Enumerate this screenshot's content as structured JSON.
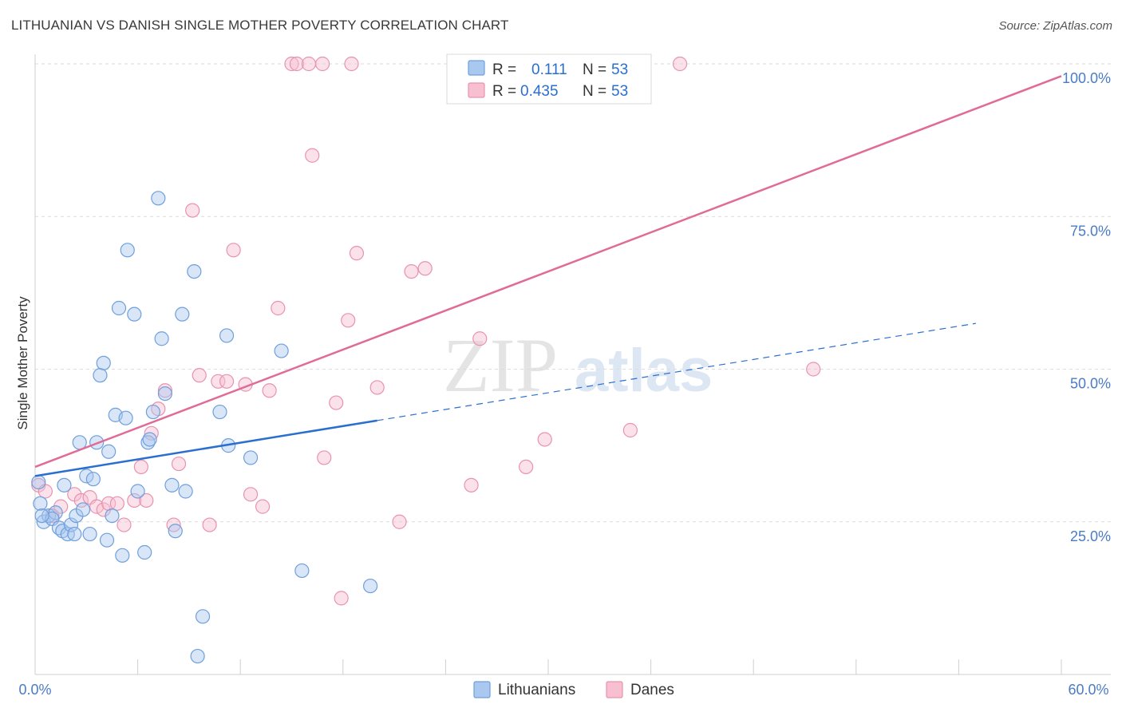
{
  "chart_data": {
    "type": "scatter",
    "title": "LITHUANIAN VS DANISH SINGLE MOTHER POVERTY CORRELATION CHART",
    "source": "Source: ZipAtlas.com",
    "ylabel": "Single Mother Poverty",
    "xlabel": "",
    "xlim": [
      0,
      60
    ],
    "ylim": [
      0,
      100
    ],
    "x_tick_labels": [
      "0.0%",
      "60.0%"
    ],
    "y_ticks": [
      25,
      50,
      75,
      100
    ],
    "y_tick_labels": [
      "25.0%",
      "50.0%",
      "75.0%",
      "100.0%"
    ],
    "watermark": {
      "part1": "ZIP",
      "part2": "atlas"
    },
    "colors": {
      "lithuanians_fill": "#a9c8f0",
      "lithuanians_stroke": "#6f9fdc",
      "lithuanians_line": "#2a6fcf",
      "danes_fill": "#f7bfd0",
      "danes_stroke": "#e992b0",
      "danes_line": "#e06b96",
      "tick": "#4a7cc4"
    },
    "stats": [
      {
        "r_label": "R =",
        "r_value": "0.111",
        "n_label": "N =",
        "n_value": "53"
      },
      {
        "r_label": "R =",
        "r_value": "0.435",
        "n_label": "N =",
        "n_value": "53"
      }
    ],
    "series": [
      {
        "name": "Lithuanians",
        "points": [
          [
            0.3,
            28
          ],
          [
            0.5,
            25
          ],
          [
            0.8,
            26
          ],
          [
            1.2,
            26.5
          ],
          [
            1.0,
            25.5
          ],
          [
            1.4,
            24
          ],
          [
            1.6,
            23.5
          ],
          [
            1.7,
            31
          ],
          [
            1.9,
            23
          ],
          [
            2.1,
            24.5
          ],
          [
            2.3,
            23
          ],
          [
            2.4,
            26
          ],
          [
            2.6,
            38
          ],
          [
            2.8,
            27
          ],
          [
            3.0,
            32.5
          ],
          [
            3.2,
            23
          ],
          [
            3.4,
            32
          ],
          [
            3.6,
            38
          ],
          [
            3.8,
            49
          ],
          [
            4.0,
            51
          ],
          [
            4.2,
            22
          ],
          [
            4.3,
            36.5
          ],
          [
            4.5,
            26
          ],
          [
            4.7,
            42.5
          ],
          [
            4.9,
            60
          ],
          [
            5.1,
            19.5
          ],
          [
            5.3,
            42
          ],
          [
            5.4,
            69.5
          ],
          [
            5.8,
            59
          ],
          [
            6.0,
            30
          ],
          [
            6.4,
            20
          ],
          [
            6.6,
            38
          ],
          [
            6.7,
            38.5
          ],
          [
            6.9,
            43
          ],
          [
            7.2,
            78
          ],
          [
            7.4,
            55
          ],
          [
            7.6,
            46
          ],
          [
            8.0,
            31
          ],
          [
            8.2,
            23.5
          ],
          [
            8.6,
            59
          ],
          [
            8.8,
            30
          ],
          [
            9.3,
            66
          ],
          [
            9.5,
            3
          ],
          [
            9.8,
            9.5
          ],
          [
            10.8,
            43
          ],
          [
            11.2,
            55.5
          ],
          [
            11.3,
            37.5
          ],
          [
            12.6,
            35.5
          ],
          [
            14.4,
            53
          ],
          [
            15.6,
            17
          ],
          [
            19.6,
            14.5
          ],
          [
            0.2,
            31.5
          ],
          [
            0.4,
            26
          ]
        ],
        "trend": {
          "x0": 0,
          "y0": 32.5,
          "x_solid_end": 20,
          "x1": 55,
          "y1": 57.5
        }
      },
      {
        "name": "Danes",
        "points": [
          [
            0.2,
            31
          ],
          [
            1.0,
            26
          ],
          [
            1.5,
            27.5
          ],
          [
            2.3,
            29.5
          ],
          [
            2.7,
            28.5
          ],
          [
            3.2,
            29
          ],
          [
            3.6,
            27.5
          ],
          [
            4.0,
            27
          ],
          [
            4.3,
            28
          ],
          [
            4.8,
            28
          ],
          [
            5.2,
            24.5
          ],
          [
            5.8,
            28.5
          ],
          [
            6.2,
            34
          ],
          [
            6.5,
            28.5
          ],
          [
            6.8,
            39.5
          ],
          [
            7.2,
            43.5
          ],
          [
            7.6,
            46.5
          ],
          [
            8.1,
            24.5
          ],
          [
            8.4,
            34.5
          ],
          [
            9.2,
            76
          ],
          [
            9.6,
            49
          ],
          [
            10.2,
            24.5
          ],
          [
            10.7,
            48
          ],
          [
            11.2,
            48
          ],
          [
            11.6,
            69.5
          ],
          [
            12.3,
            47.5
          ],
          [
            12.6,
            29.5
          ],
          [
            13.3,
            27.5
          ],
          [
            13.7,
            46.5
          ],
          [
            14.2,
            60
          ],
          [
            15.0,
            100
          ],
          [
            15.3,
            100
          ],
          [
            16.0,
            100
          ],
          [
            16.2,
            85
          ],
          [
            16.8,
            100
          ],
          [
            16.9,
            35.5
          ],
          [
            17.6,
            44.5
          ],
          [
            17.9,
            12.5
          ],
          [
            18.3,
            58
          ],
          [
            18.5,
            100
          ],
          [
            18.8,
            69
          ],
          [
            20.0,
            47
          ],
          [
            21.3,
            25
          ],
          [
            22.0,
            66
          ],
          [
            22.8,
            66.5
          ],
          [
            25.5,
            31
          ],
          [
            26.0,
            55
          ],
          [
            28.7,
            34
          ],
          [
            29.8,
            38.5
          ],
          [
            34.8,
            40
          ],
          [
            37.7,
            100
          ],
          [
            45.5,
            50
          ],
          [
            0.6,
            30
          ]
        ],
        "trend": {
          "x0": 0,
          "y0": 34,
          "x1": 60,
          "y1": 98
        }
      }
    ]
  }
}
